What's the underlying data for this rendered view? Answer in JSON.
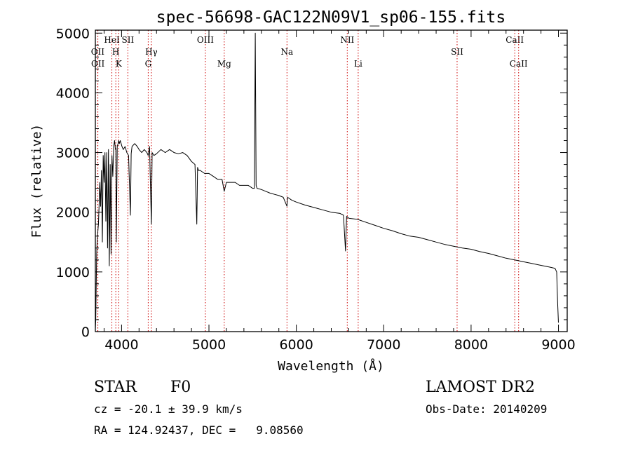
{
  "chart_data": {
    "type": "line",
    "title": "spec-56698-GAC122N09V1_sp06-155.fits",
    "xlabel": "Wavelength (Å)",
    "ylabel": "Flux (relative)",
    "xlim": [
      3700,
      9100
    ],
    "ylim": [
      0,
      5050
    ],
    "xticks": [
      4000,
      5000,
      6000,
      7000,
      8000,
      9000
    ],
    "yticks": [
      0,
      1000,
      2000,
      3000,
      4000,
      5000
    ],
    "grid": false,
    "series_color": "#000000",
    "line_marker_color": "#cc0000",
    "lines": [
      {
        "label": "OII",
        "x": 3727,
        "row": 2
      },
      {
        "label": "OII",
        "x": 3729,
        "row": 3
      },
      {
        "label": "HeI",
        "x": 3889,
        "row": 1
      },
      {
        "label": "H",
        "x": 3934,
        "row": 2
      },
      {
        "label": "K",
        "x": 3968,
        "row": 3
      },
      {
        "label": "SII",
        "x": 4072,
        "row": 1
      },
      {
        "label": "Hγ",
        "x": 4341,
        "row": 2
      },
      {
        "label": "G",
        "x": 4305,
        "row": 3
      },
      {
        "label": "OIII",
        "x": 4959,
        "row": 1
      },
      {
        "label": "Mg",
        "x": 5175,
        "row": 3
      },
      {
        "label": "Na",
        "x": 5893,
        "row": 2
      },
      {
        "label": "NII",
        "x": 6583,
        "row": 1
      },
      {
        "label": "Li",
        "x": 6708,
        "row": 3
      },
      {
        "label": "SII",
        "x": 7840,
        "row": 2
      },
      {
        "label": "CaII",
        "x": 8500,
        "row": 1
      },
      {
        "label": "CaII",
        "x": 8544,
        "row": 3
      }
    ],
    "series": [
      {
        "x": [
          3700,
          3705,
          3710,
          3715,
          3720,
          3725,
          3730,
          3735,
          3740,
          3745,
          3750,
          3760,
          3770,
          3780,
          3790,
          3800,
          3810,
          3820,
          3830,
          3840,
          3850,
          3860,
          3870,
          3880,
          3890,
          3900,
          3910,
          3920,
          3930,
          3934,
          3940,
          3950,
          3960,
          3968,
          3975,
          3985,
          3995,
          4005,
          4020,
          4040,
          4060,
          4080,
          4101,
          4110,
          4120,
          4150,
          4180,
          4200,
          4230,
          4260,
          4290,
          4305,
          4320,
          4341,
          4350,
          4370,
          4400,
          4450,
          4500,
          4550,
          4600,
          4650,
          4700,
          4750,
          4800,
          4840,
          4861,
          4870,
          4880,
          4900,
          4950,
          5000,
          5050,
          5100,
          5150,
          5175,
          5200,
          5250,
          5300,
          5350,
          5400,
          5450,
          5500,
          5520,
          5530,
          5540,
          5550,
          5600,
          5650,
          5700,
          5750,
          5800,
          5850,
          5893,
          5900,
          5950,
          6000,
          6100,
          6200,
          6300,
          6400,
          6500,
          6540,
          6563,
          6575,
          6600,
          6700,
          6800,
          6900,
          7000,
          7100,
          7200,
          7300,
          7400,
          7500,
          7600,
          7700,
          7800,
          7900,
          8000,
          8100,
          8200,
          8300,
          8400,
          8500,
          8600,
          8700,
          8800,
          8900,
          8960,
          8980,
          8990,
          9000
        ],
        "y": [
          50,
          200,
          750,
          1300,
          1500,
          1600,
          1700,
          1800,
          2000,
          2200,
          2500,
          2100,
          2700,
          1500,
          2950,
          2500,
          3000,
          1850,
          3000,
          1400,
          3050,
          1100,
          2800,
          1300,
          2950,
          2600,
          3100,
          3200,
          3050,
          3050,
          1500,
          3100,
          3150,
          3200,
          3150,
          3200,
          3150,
          3100,
          3050,
          3100,
          3000,
          2950,
          1950,
          2980,
          3100,
          3150,
          3100,
          3050,
          3000,
          3050,
          3000,
          2950,
          3100,
          1800,
          3000,
          2950,
          2980,
          3050,
          3000,
          3050,
          3000,
          2980,
          3000,
          2950,
          2850,
          2800,
          1800,
          2750,
          2700,
          2700,
          2650,
          2650,
          2600,
          2550,
          2550,
          2350,
          2500,
          2500,
          2500,
          2450,
          2450,
          2450,
          2400,
          2400,
          5000,
          2450,
          2400,
          2380,
          2350,
          2320,
          2300,
          2280,
          2250,
          2100,
          2250,
          2200,
          2170,
          2120,
          2080,
          2040,
          2000,
          1980,
          1950,
          1350,
          1930,
          1900,
          1880,
          1830,
          1780,
          1730,
          1690,
          1640,
          1600,
          1580,
          1540,
          1500,
          1460,
          1430,
          1400,
          1380,
          1340,
          1310,
          1270,
          1230,
          1200,
          1170,
          1140,
          1110,
          1080,
          1060,
          1000,
          500,
          150
        ]
      }
    ]
  },
  "footer": {
    "object_class": "STAR",
    "spectral_type": "F0",
    "cz_text": "cz = -20.1 ± 39.9 km/s",
    "radec_text": "RA = 124.92437, DEC =   9.08560",
    "survey": "LAMOST DR2",
    "obs_date": "Obs-Date: 20140209"
  }
}
